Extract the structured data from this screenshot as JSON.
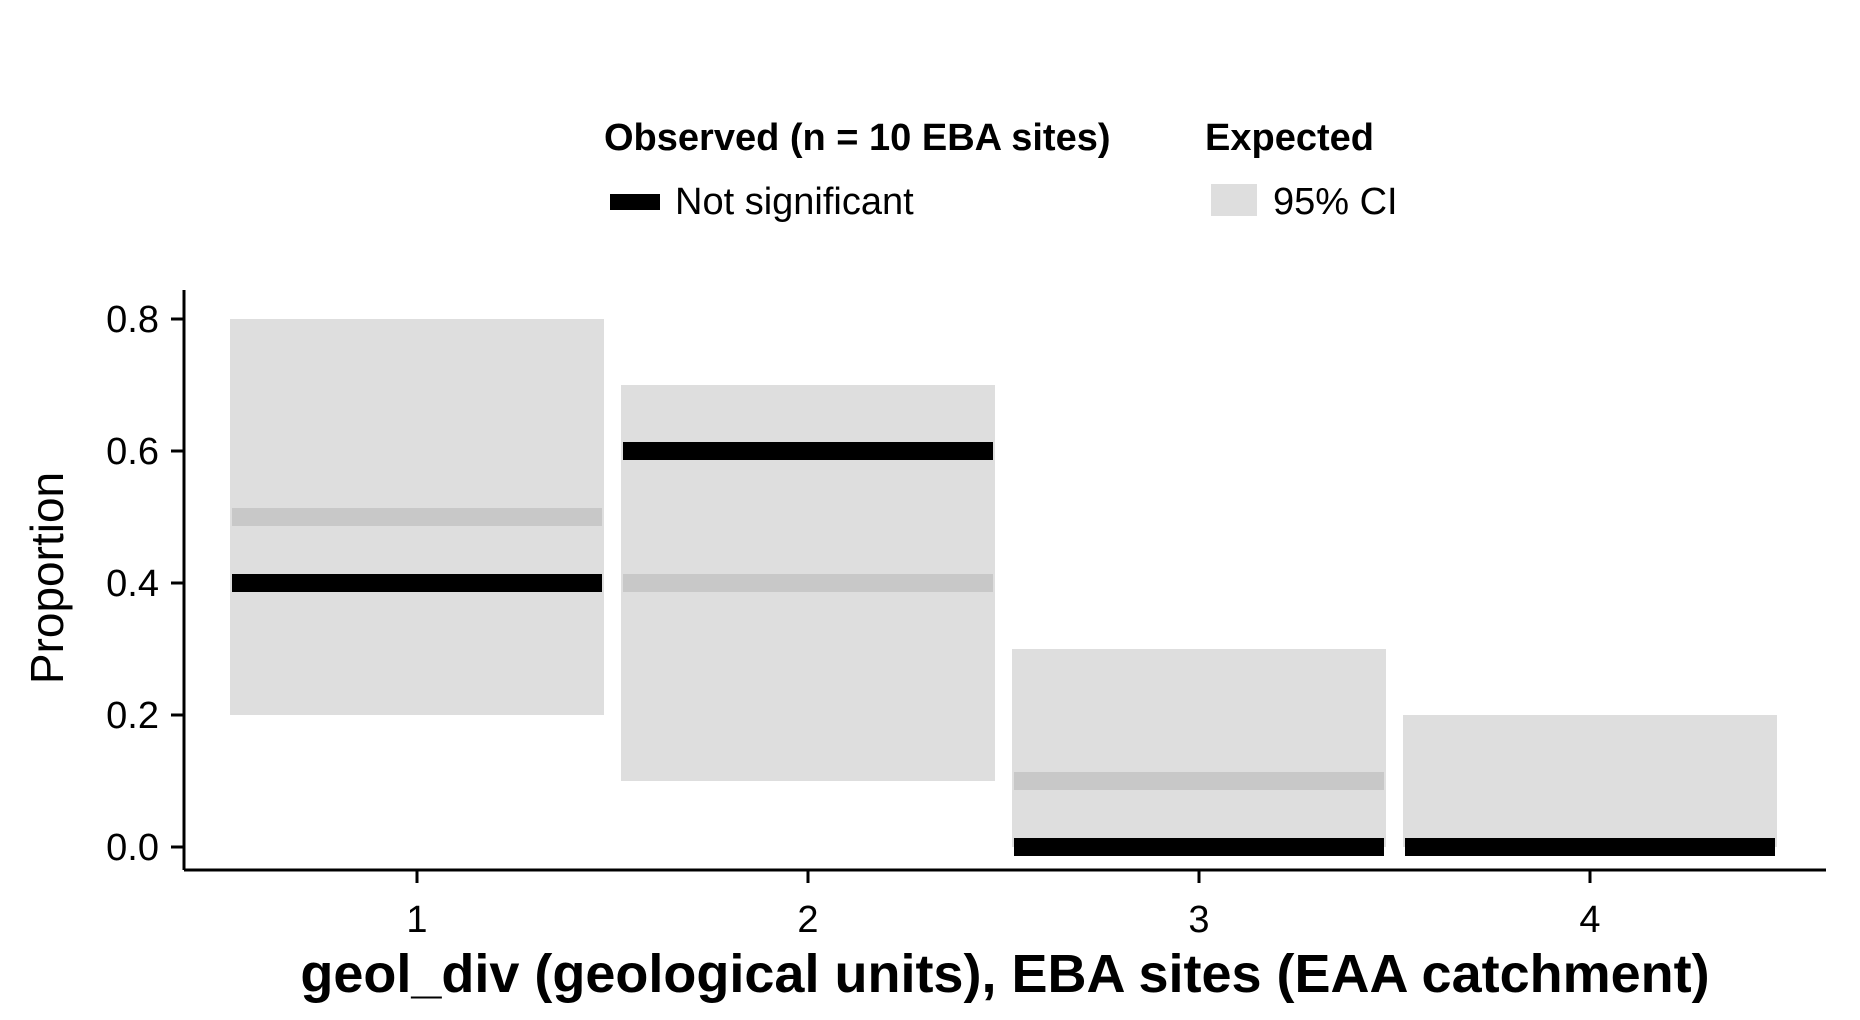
{
  "chart_data": {
    "type": "bar",
    "x_label": "geol_div (geological units), EBA sites (EAA catchment)",
    "y_label": "Proportion",
    "categories": [
      "1",
      "2",
      "3",
      "4"
    ],
    "y_ticks": [
      "0.0",
      "0.2",
      "0.4",
      "0.6",
      "0.8"
    ],
    "y_tick_values": [
      0.0,
      0.2,
      0.4,
      0.6,
      0.8
    ],
    "ylim": [
      -0.035,
      0.835
    ],
    "grid": false,
    "legend": {
      "placement": "top",
      "observed_title": "Observed (n = 10 EBA sites)",
      "observed_entry": "Not significant",
      "expected_title": "Expected",
      "expected_entry": "95% CI"
    },
    "series": [
      {
        "name": "Observed (n = 10 EBA sites)",
        "status": "Not significant",
        "values": [
          0.4,
          0.6,
          0.0,
          0.0
        ]
      },
      {
        "name": "Expected",
        "values": [
          0.5,
          0.4,
          0.1,
          0.0
        ]
      }
    ],
    "ci_95": {
      "name": "95% CI",
      "lower": [
        0.2,
        0.1,
        0.0,
        0.0
      ],
      "upper": [
        0.8,
        0.7,
        0.3,
        0.2
      ]
    },
    "colors": {
      "ci_fill": "#dedede",
      "expected_line": "#c8c8c8",
      "observed_line": "#000000",
      "axis": "#000000"
    }
  }
}
